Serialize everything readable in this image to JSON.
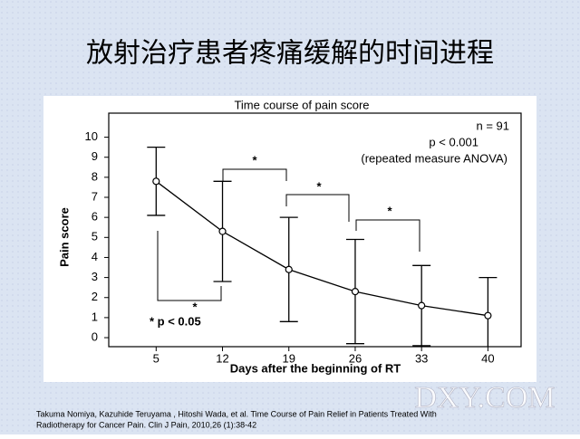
{
  "title": "放射治疗患者疼痛缓解的时间进程",
  "chart_data": {
    "type": "line",
    "title": "Time course of pain score",
    "x_label": "Days after the beginning of RT",
    "y_label": "Pain score",
    "x": [
      5,
      12,
      19,
      26,
      33,
      40
    ],
    "values": [
      7.8,
      5.3,
      3.4,
      2.3,
      1.6,
      1.1
    ],
    "errors": [
      1.7,
      2.5,
      2.6,
      2.6,
      2.0,
      1.9
    ],
    "color": "#000000",
    "xlim": [
      0,
      43.5
    ],
    "xticks": [
      5,
      12,
      19,
      26,
      33,
      40
    ],
    "ylim": [
      -0.45,
      11.2
    ],
    "yticks": [
      0,
      1,
      2,
      3,
      4,
      5,
      6,
      7,
      8,
      9,
      10
    ],
    "annotations": [
      "n = 91",
      "p < 0.001",
      "(repeated measure ANOVA)",
      "*",
      "*",
      "*",
      "*",
      "* p < 0.05"
    ]
  },
  "citation": [
    "Takuma Nomiya, Kazuhide Teruyama , Hitoshi Wada, et al. Time Course of Pain Relief in Patients Treated With",
    "Radiotherapy for Cancer Pain. Clin J Pain, 2010,26 (1):38-42"
  ],
  "watermark": "DXY.COM"
}
